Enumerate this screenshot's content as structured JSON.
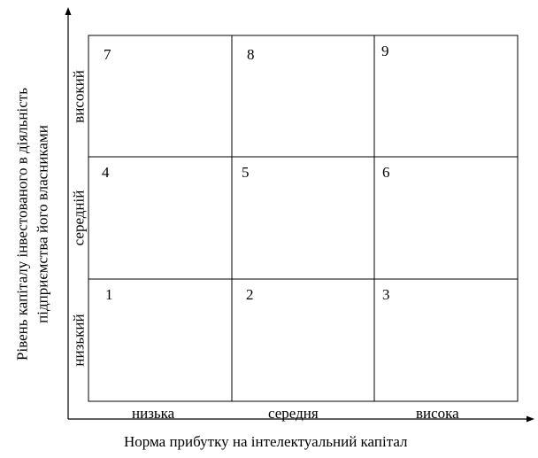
{
  "y_axis_title": {
    "line1": "Рівень капіталу інвестованого в діяльність",
    "line2": "підприємства його власниками"
  },
  "x_axis_title": "Норма прибутку на інтелектуальний капітал",
  "column_labels": [
    "низька",
    "середня",
    "висока"
  ],
  "row_labels": [
    "високий",
    "середній",
    "низький"
  ],
  "cells": [
    [
      "7",
      "8",
      "9"
    ],
    [
      "4",
      "5",
      "6"
    ],
    [
      "1",
      "2",
      "3"
    ]
  ]
}
